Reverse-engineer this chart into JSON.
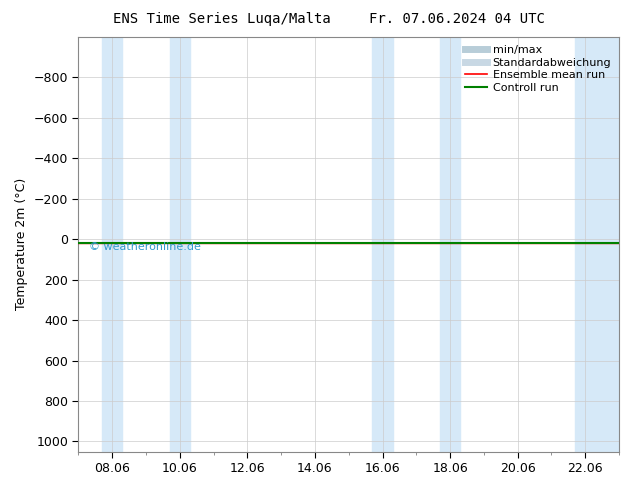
{
  "title_left": "ENS Time Series Luqa/Malta",
  "title_right": "Fr. 07.06.2024 04 UTC",
  "ylabel": "Temperature 2m (°C)",
  "ylim_top": -1000,
  "ylim_bottom": 1050,
  "yticks": [
    -800,
    -600,
    -400,
    -200,
    0,
    200,
    400,
    600,
    800,
    1000
  ],
  "xtick_labels": [
    "08.06",
    "10.06",
    "12.06",
    "14.06",
    "16.06",
    "18.06",
    "20.06",
    "22.06"
  ],
  "xtick_positions": [
    1,
    3,
    5,
    7,
    9,
    11,
    13,
    15
  ],
  "x_min": 0,
  "x_max": 16,
  "shaded_bands": [
    {
      "x_start": 0.7,
      "x_end": 1.3
    },
    {
      "x_start": 2.7,
      "x_end": 3.3
    },
    {
      "x_start": 8.7,
      "x_end": 9.3
    },
    {
      "x_start": 10.7,
      "x_end": 11.3
    },
    {
      "x_start": 14.7,
      "x_end": 16.1
    }
  ],
  "green_line_y": 20,
  "red_line_y": 20,
  "watermark": "© weatheronline.de",
  "watermark_color": "#3399cc",
  "bg_color": "#ffffff",
  "plot_bg_color": "#ffffff",
  "band_color": "#d6e9f8",
  "grid_color": "#cccccc",
  "spine_color": "#888888",
  "legend_minmax_color": "#b8cdd8",
  "legend_std_color": "#c8d8e4",
  "title_fontsize": 10,
  "ylabel_fontsize": 9,
  "tick_fontsize": 9,
  "legend_fontsize": 8
}
